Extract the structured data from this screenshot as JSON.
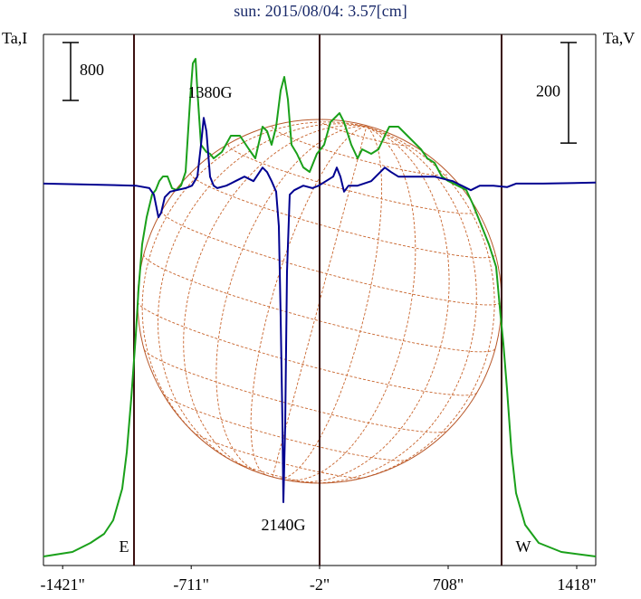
{
  "chart_data": {
    "type": "line",
    "title": "sun: 2015/08/04: 3.57[cm]",
    "ylabel": "Ta,I",
    "y2label": "Ta,V",
    "annotations": [
      "1380G",
      "2140G",
      "E",
      "W"
    ],
    "xlim": [
      -1527,
      1523
    ],
    "xticks": [
      {
        "value": -1421,
        "label": "-1421\""
      },
      {
        "value": -711,
        "label": "-711\""
      },
      {
        "value": -2,
        "label": "-2\""
      },
      {
        "value": 708,
        "label": "708\""
      },
      {
        "value": 1418,
        "label": "1418\""
      }
    ],
    "vlines": [
      -1027,
      -2,
      1003
    ],
    "vline_color": "#3a1010",
    "ylim": [
      -125,
      7213
    ],
    "y2lim": [
      -760,
      297
    ],
    "scale_bars": [
      {
        "axis": "y",
        "value": 800
      },
      {
        "axis": "y2",
        "value": 200
      }
    ],
    "series": [
      {
        "name": "I",
        "color": "#1aa01a",
        "axis": "y",
        "x": [
          -1527,
          -1367,
          -1267,
          -1192,
          -1142,
          -1092,
          -1067,
          -1042,
          -1017,
          -1002,
          -982,
          -957,
          -927,
          -907,
          -887,
          -867,
          -842,
          -817,
          -792,
          -767,
          -742,
          -717,
          -702,
          -687,
          -677,
          -657,
          -627,
          -607,
          -587,
          -542,
          -492,
          -442,
          -392,
          -357,
          -317,
          -292,
          -267,
          -242,
          -217,
          -197,
          -177,
          -157,
          -127,
          -92,
          -57,
          -17,
          23,
          58,
          83,
          108,
          133,
          173,
          208,
          233,
          283,
          323,
          358,
          383,
          433,
          483,
          523,
          558,
          593,
          633,
          673,
          708,
          758,
          808,
          843,
          883,
          933,
          973,
          998,
          1013,
          1033,
          1058,
          1083,
          1133,
          1208,
          1333,
          1523
        ],
        "values": [
          0,
          62,
          188,
          312,
          500,
          938,
          1438,
          2188,
          3063,
          3688,
          4313,
          4688,
          5000,
          5063,
          5188,
          5250,
          5250,
          5088,
          5063,
          5125,
          5313,
          6313,
          6813,
          6875,
          6438,
          5688,
          5588,
          5563,
          5500,
          5588,
          5813,
          5813,
          5625,
          5500,
          5938,
          5875,
          5688,
          5938,
          6438,
          6625,
          6313,
          5688,
          5563,
          5375,
          5313,
          5563,
          5688,
          6000,
          6063,
          6125,
          6000,
          5688,
          5500,
          5625,
          5563,
          5625,
          5813,
          5938,
          5938,
          5813,
          5713,
          5625,
          5500,
          5438,
          5250,
          5188,
          5125,
          5063,
          4875,
          4625,
          4313,
          4000,
          3313,
          2938,
          2313,
          1438,
          875,
          438,
          188,
          62,
          0
        ]
      },
      {
        "name": "V",
        "color": "#000090",
        "axis": "y2",
        "x": [
          -1527,
          -1267,
          -1017,
          -942,
          -917,
          -892,
          -877,
          -857,
          -827,
          -792,
          -742,
          -707,
          -677,
          -657,
          -642,
          -627,
          -607,
          -587,
          -567,
          -517,
          -467,
          -417,
          -367,
          -317,
          -292,
          -267,
          -242,
          -227,
          -217,
          -207,
          -202,
          -192,
          -182,
          -167,
          -142,
          -92,
          -42,
          -7,
          33,
          73,
          93,
          113,
          133,
          158,
          208,
          283,
          358,
          393,
          433,
          533,
          633,
          733,
          783,
          833,
          883,
          958,
          1033,
          1083,
          1233,
          1523
        ],
        "values": [
          0,
          -2,
          -4,
          -9,
          -22,
          -67,
          -58,
          -27,
          -16,
          -13,
          -9,
          -4,
          14,
          77,
          131,
          104,
          14,
          -4,
          -9,
          -4,
          5,
          14,
          5,
          32,
          23,
          5,
          -16,
          -85,
          -265,
          -481,
          -634,
          -481,
          -175,
          -22,
          -13,
          -4,
          -9,
          -4,
          5,
          14,
          32,
          14,
          -16,
          -4,
          -4,
          5,
          32,
          23,
          14,
          14,
          14,
          5,
          -4,
          -13,
          -4,
          -4,
          -7,
          0,
          0,
          2
        ]
      }
    ]
  }
}
